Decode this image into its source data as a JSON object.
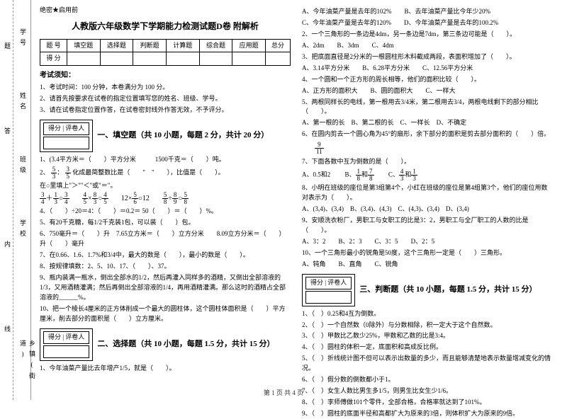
{
  "binding": {
    "labels": [
      "学号",
      "姓名",
      "班级",
      "学校",
      "乡镇(街道)"
    ],
    "inner": [
      "题",
      "答",
      "内",
      "线",
      "封"
    ]
  },
  "header_tag": "绝密★启用前",
  "title": "人教版六年级数学下学期能力检测试题D卷 附解析",
  "score_table": {
    "cols": [
      "题 号",
      "填空题",
      "选择题",
      "判断题",
      "计算题",
      "综合题",
      "应用题",
      "总分"
    ],
    "row": [
      "得 分",
      "",
      "",
      "",
      "",
      "",
      "",
      ""
    ]
  },
  "notice_title": "考试须知：",
  "notices": [
    "1、考试时间：100 分钟，本卷满分为 100 分。",
    "2、请首先按要求在试卷的指定位置填写您的姓名、班级、学号。",
    "3、请在试卷指定位置作答，在试卷密封线外作答无效，不予评分。"
  ],
  "sec1": {
    "title": "一、填空题（共 10 小题，每题 2 分，共计 20 分）",
    "scorer": "得分 | 评卷人"
  },
  "sec2": {
    "title": "二、选择题（共 10 小题，每题 1.5 分，共计 15 分）",
    "scorer": "得分 | 评卷人"
  },
  "sec3": {
    "title": "三、判断题（共 10 小题，每题 1.5 分，共计 15 分）",
    "scorer": "得分 | 评卷人"
  },
  "q1": {
    "i1": "1、(3.4平方米＝（　　）平方分米　　　1500千克＝（　　）吨。",
    "i2a": "2、",
    "i2b": "化成最简整数比是（　　\"　\"　　），比值是（　　）。",
    "i3_exprs": [
      [
        "3",
        "1",
        "3",
        "—=—",
        "4",
        "3",
        "O"
      ],
      [
        "4",
        "8",
        "4",
        "—×—",
        "5",
        "3",
        "O5"
      ],
      [
        "12×",
        "5",
        "",
        "6",
        "O12"
      ],
      [
        "5",
        "8",
        "5",
        "—÷—",
        "8",
        "9",
        "O8"
      ]
    ],
    "i4": "4、（　　）÷20＝4：（　　）＝0.2＝ 50（　　）＝（　　）%。",
    "i5": "5、有20千克糖，每1/2千克装1包，可以装（　　）包。",
    "i6": "6、750毫升＝（　　）升　7.65立方米＝（　　）立方分米　　8.09立方分米＝（　　）升（　　）毫升",
    "i7": "7、在0.66、1.6、1.7%和3/4中，最大的数是（　　），最小的数是（　　）。",
    "i8": "8、按规律填数：2、5、10、17、（　　）、37。",
    "i9": "9、瓶内装满一瓶水，倒出全部水的1/2，然后再灌入同样多的酒精，又倒出全部溶液的1/3，又用酒精灌满；然后再倒出全部溶液的1/4，再用酒精灌满。那么这时的酒精占全部溶液的______%。",
    "i10": "10、把一个棱长4厘米的正方体削成一个最大的圆柱体，这个圆柱体面积是（　　）平方厘米，削去部分的面积是（　　）立方厘米。"
  },
  "q2": {
    "i1": "1、今年油菜产量比去年增产1/5，就是（　　）。",
    "i1o": [
      "A、今年油菜产量是去年的102%",
      "B、去年油菜产量比今年少20%",
      "C、今年油菜产量是去年的120%",
      "D、今年油菜产量是去年的100.2%"
    ],
    "i2": "2、一个三角形的一条边是4dm，另一条边是7dm，第三条边可能是（　　）。",
    "i2o": [
      "A、2dm",
      "B、3dm",
      "C、4dm"
    ],
    "i3": "3、把底面直径是2分米的一根圆柱形木料截成两段，表面积增加了（　　）。",
    "i3o": [
      "A、3.14平方分米",
      "B、6.28平方分米",
      "C、12.56平方分米"
    ],
    "i4": "4、一个圆和一个正方形的周长相等，他们的面积比较（　　）。",
    "i4o": [
      "A、正方形的面积大",
      "B、圆的面积大",
      "C、一样大"
    ],
    "i5": "5、两根同样长的电线，第一根用去3/4米，第二根用去3/4，两根电线剩下的部分相比（　　）。",
    "i5o": [
      "A、第一根的长",
      "B、第二根的长",
      "C、一样长",
      "D、不确定"
    ],
    "i6": "6、在圆内剪去一个圆心角为45°的扇形，余下部分的面积是剪去部分面积的（　　）倍。",
    "i7": "7、下面各数中互为倒数的是（　　）。",
    "i7o": [
      "A、0.5和2",
      "B、",
      "和",
      "C、",
      "和"
    ],
    "i8": "8、小明在班级的座位是第3组第4个，小红在班级的座位是第4组第3个，他们的座位用数对表示为（　　）。",
    "i8o": [
      "A、(3,4)、(3,4)",
      "B、(3,4)、(4,3)",
      "C、(4,3)、(3,4)",
      "D、(3,4)"
    ],
    "i9": "9、安顺洗衣粉厂，男职工与女职工的比是3：2，男职工与全厂职工的人数的比是（　　）。",
    "i9o": [
      "A、3：2",
      "B、2：3",
      "C、3：5",
      "D、2：5"
    ],
    "i10": "10、一个三角形最小的锐角是50度，这个三角形一定是（　　）三角形。",
    "i10o": [
      "A、钝角",
      "B、直角",
      "C、锐角"
    ]
  },
  "q3": {
    "i1": "1、（　）0.25和4互为倒数。",
    "i2": "2、（　）一个自然数（0除外）与分数相除，积一定大于这个自然数。",
    "i3": "3、（　）甲数比乙数少25%，甲数和乙数的比是3:4。",
    "i4": "4、（　）圆柱的体积一定，底面积和高成反比例。",
    "i5": "5、（　）折线统计图不但可以表示出数量的多少，而且能够清楚地表示数量增减变化的情况。",
    "i6": "6、（　）假分数的倒数都小于1。",
    "i7": "7、（　）女生人数比男生多1/5，则男生比女生少1/6。",
    "i8": "8、（　）李师傅做101个零件，全部合格，合格率就达到了101%。",
    "i9": "9、（　）圆柱的底面半径和高都扩大为原来的3倍，则体积扩大为原来的9倍。"
  },
  "frac_9_11": {
    "n": "9",
    "d": "11"
  },
  "frac_5_3": {
    "n": "5",
    "d": "3"
  },
  "frac_1_8": {
    "n": "1",
    "d": "8"
  },
  "frac_7_8": {
    "n": "7",
    "d": "8"
  },
  "frac_4_3": {
    "n": "4",
    "d": "3"
  },
  "frac_1_3": {
    "n": "1",
    "d": "3"
  },
  "footer": "第 1 页 共 4 页"
}
